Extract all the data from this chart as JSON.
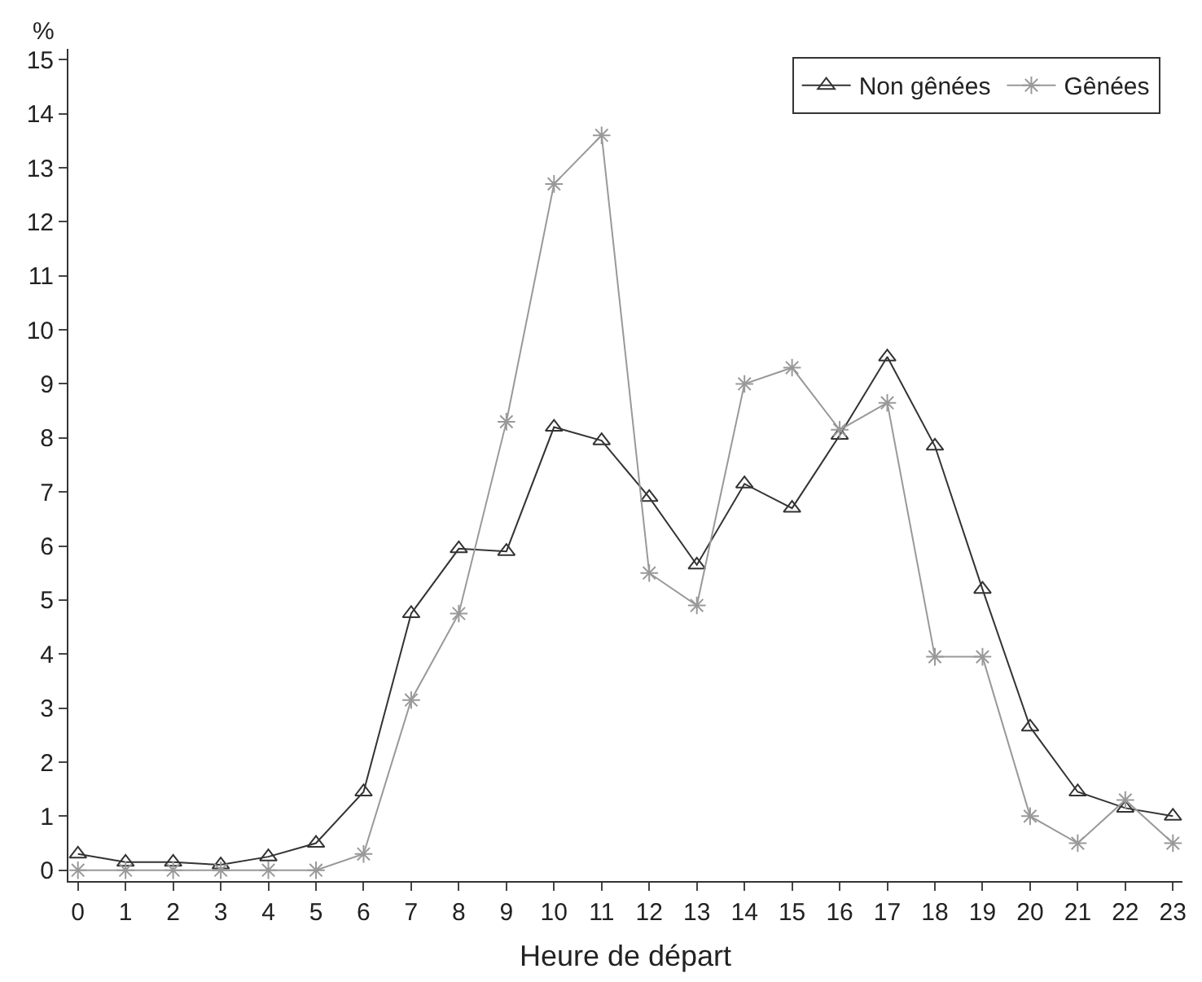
{
  "chart_data": {
    "type": "line",
    "xlabel": "Heure de départ",
    "ylabel": "%",
    "x": [
      0,
      1,
      2,
      3,
      4,
      5,
      6,
      7,
      8,
      9,
      10,
      11,
      12,
      13,
      14,
      15,
      16,
      17,
      18,
      19,
      20,
      21,
      22,
      23
    ],
    "series": [
      {
        "name": "Non gênées",
        "color": "#333333",
        "marker": "triangle",
        "values": [
          0.3,
          0.15,
          0.15,
          0.1,
          0.25,
          0.5,
          1.45,
          4.75,
          5.95,
          5.9,
          8.2,
          7.95,
          6.9,
          5.65,
          7.15,
          6.7,
          8.05,
          9.5,
          7.85,
          5.2,
          2.65,
          1.45,
          1.15,
          1.0
        ]
      },
      {
        "name": "Gênées",
        "color": "#999999",
        "marker": "cross",
        "values": [
          0,
          0,
          0,
          0,
          0,
          0,
          0.3,
          3.15,
          4.75,
          8.3,
          12.7,
          13.6,
          5.5,
          4.9,
          9.0,
          9.3,
          8.15,
          8.65,
          3.95,
          3.95,
          1.0,
          0.5,
          1.3,
          0.5
        ]
      }
    ],
    "xlim": [
      -0.2,
      23.2
    ],
    "xticks": [
      0,
      1,
      2,
      3,
      4,
      5,
      6,
      7,
      8,
      9,
      10,
      11,
      12,
      13,
      14,
      15,
      16,
      17,
      18,
      19,
      20,
      21,
      22,
      23
    ],
    "ylim": [
      -0.2,
      15.2
    ],
    "yticks": [
      0,
      1,
      2,
      3,
      4,
      5,
      6,
      7,
      8,
      9,
      10,
      11,
      12,
      13,
      14,
      15
    ],
    "grid": false,
    "legend": "top right",
    "line_style": "solid"
  }
}
